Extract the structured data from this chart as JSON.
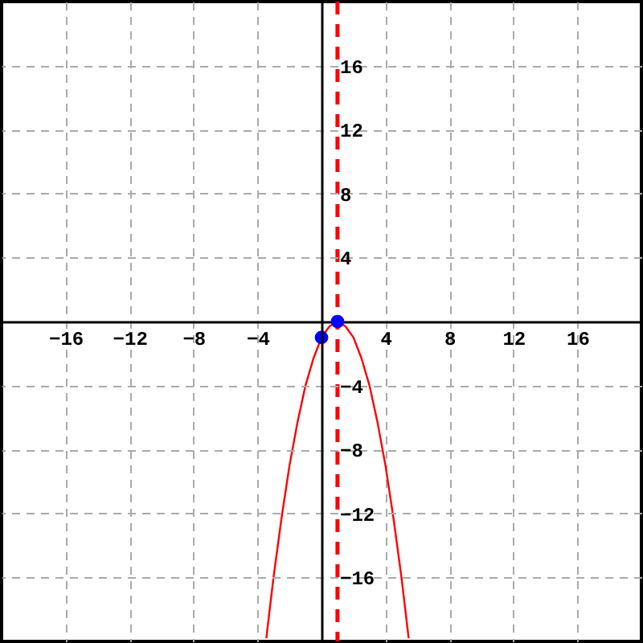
{
  "chart_data": {
    "type": "line",
    "xlim": [
      -20,
      20
    ],
    "ylim": [
      -20,
      20
    ],
    "xticks": [
      -16,
      -12,
      -8,
      -4,
      4,
      8,
      12,
      16
    ],
    "yticks": [
      -16,
      -12,
      -8,
      -4,
      4,
      8,
      12,
      16
    ],
    "grid": true,
    "series": [
      {
        "color": "#ff0000",
        "marker": "none",
        "line_style": "solid",
        "x": [
          -3.45,
          -3,
          -2.5,
          -2,
          -1.5,
          -1,
          -0.5,
          0,
          0.5,
          1,
          1.5,
          2,
          2.5,
          3,
          3.5,
          4,
          4.5,
          5,
          5.45
        ],
        "values": [
          -19.8,
          -16,
          -12.3,
          -9,
          -6.3,
          -4,
          -2.3,
          -1,
          -0.3,
          0,
          -0.3,
          -1,
          -2.3,
          -4,
          -6.3,
          -9,
          -12.3,
          -16,
          -19.8
        ]
      },
      {
        "type": "scatter",
        "color": "#0000ff",
        "marker": "circle",
        "x": [
          0,
          1
        ],
        "values": [
          -1,
          0
        ]
      }
    ],
    "ref_lines": [
      {
        "axis": "x",
        "value": 1,
        "color": "#ff0000",
        "line_style": "dashed"
      }
    ]
  }
}
